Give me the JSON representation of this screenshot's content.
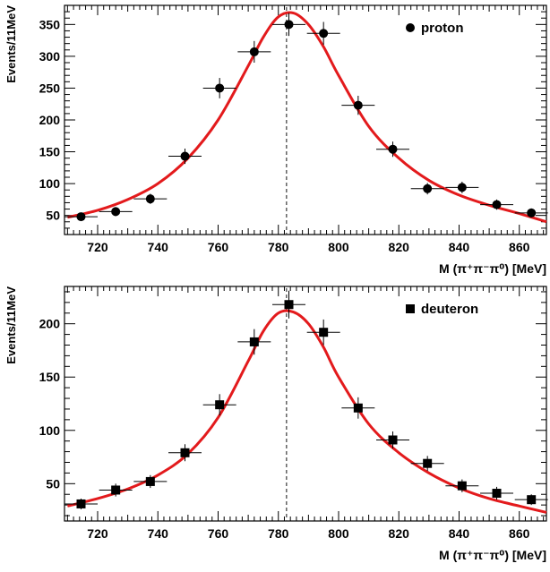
{
  "chart_data": [
    {
      "type": "scatter",
      "ylabel": "Events/11MeV",
      "xlabel": "M (π⁺π⁻π⁰) [MeV]",
      "xlim": [
        709,
        869
      ],
      "ylim": [
        20,
        380
      ],
      "xticks": [
        720,
        740,
        760,
        780,
        800,
        820,
        840,
        860
      ],
      "yticks": [
        50,
        100,
        150,
        200,
        250,
        300,
        350
      ],
      "reference_line_x": 782.7,
      "legend": {
        "label": "proton",
        "marker": "circle",
        "placement": "top-right"
      },
      "series": [
        {
          "name": "proton",
          "x": [
            714.5,
            726,
            737.5,
            749,
            760.5,
            772,
            783.5,
            795,
            806.5,
            818,
            829.5,
            841,
            852.5,
            864
          ],
          "y": [
            48,
            56,
            76,
            143,
            250,
            307,
            350,
            336,
            223,
            154,
            92,
            94,
            67,
            54
          ],
          "x_err": 5.5,
          "y_err": [
            6,
            7,
            8,
            12,
            16,
            17,
            18,
            18,
            15,
            12,
            9,
            9,
            8,
            7
          ]
        }
      ],
      "fit_curve": {
        "color": "#e31a1c",
        "x": [
          710,
          720,
          730,
          740,
          750,
          760,
          770,
          775,
          780,
          785,
          790,
          795,
          800,
          810,
          820,
          830,
          840,
          850,
          860,
          869
        ],
        "y": [
          47,
          58,
          75,
          100,
          140,
          200,
          285,
          330,
          362,
          368,
          350,
          315,
          270,
          190,
          140,
          105,
          82,
          66,
          53,
          40
        ]
      }
    },
    {
      "type": "scatter",
      "ylabel": "Events/11MeV",
      "xlabel": "M (π⁺π⁻π⁰) [MeV]",
      "xlim": [
        709,
        869
      ],
      "ylim": [
        15,
        235
      ],
      "xticks": [
        720,
        740,
        760,
        780,
        800,
        820,
        840,
        860
      ],
      "yticks": [
        50,
        100,
        150,
        200
      ],
      "reference_line_x": 782.7,
      "legend": {
        "label": "deuteron",
        "marker": "square",
        "placement": "top-right"
      },
      "series": [
        {
          "name": "deuteron",
          "x": [
            714.5,
            726,
            737.5,
            749,
            760.5,
            772,
            783.5,
            795,
            806.5,
            818,
            829.5,
            841,
            852.5,
            864
          ],
          "y": [
            31,
            44,
            52,
            79,
            124,
            183,
            218,
            192,
            121,
            91,
            69,
            48,
            41,
            35
          ],
          "x_err": 5.5,
          "y_err": [
            5,
            6,
            6,
            8,
            10,
            12,
            13,
            12,
            10,
            8,
            7,
            6,
            6,
            5
          ]
        }
      ],
      "fit_curve": {
        "color": "#e31a1c",
        "x": [
          710,
          720,
          730,
          740,
          750,
          760,
          770,
          775,
          780,
          785,
          790,
          795,
          800,
          810,
          820,
          830,
          840,
          850,
          860,
          869
        ],
        "y": [
          29,
          36,
          45,
          58,
          78,
          112,
          165,
          193,
          210,
          211,
          200,
          178,
          150,
          106,
          79,
          60,
          46,
          36,
          29,
          23
        ]
      }
    }
  ]
}
